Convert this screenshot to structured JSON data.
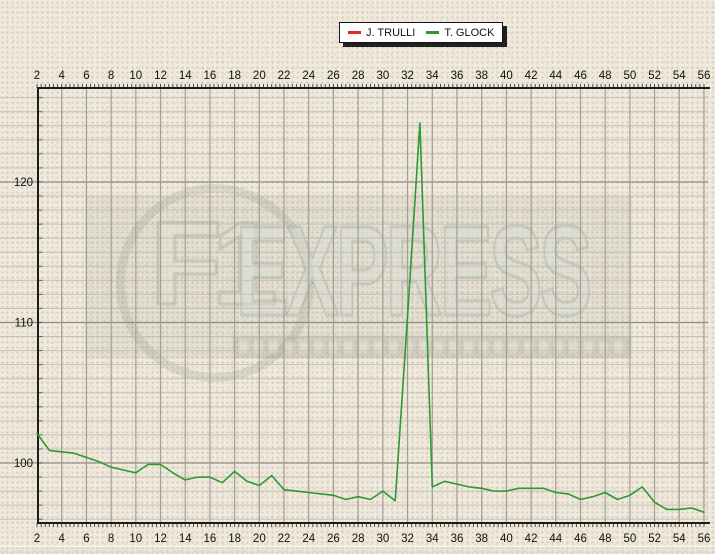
{
  "watermark": {
    "f1": "F1",
    "express": "EXPRESS"
  },
  "chart_data": {
    "type": "line",
    "title": "",
    "xlabel": "",
    "ylabel": "",
    "x": [
      2,
      3,
      4,
      5,
      6,
      7,
      8,
      9,
      10,
      11,
      12,
      13,
      14,
      15,
      16,
      17,
      18,
      19,
      20,
      21,
      22,
      23,
      24,
      25,
      26,
      27,
      28,
      29,
      30,
      31,
      32,
      33,
      34,
      35,
      36,
      37,
      38,
      39,
      40,
      41,
      42,
      43,
      44,
      45,
      46,
      47,
      48,
      49,
      50,
      51,
      52,
      53,
      54,
      55,
      56
    ],
    "series": [
      {
        "name": "J. TRULLI",
        "color": "#e02b20",
        "values": []
      },
      {
        "name": "T. GLOCK",
        "color": "#2e9933",
        "values": [
          102.1,
          100.9,
          100.8,
          100.7,
          100.4,
          100.1,
          99.7,
          99.5,
          99.3,
          99.9,
          99.9,
          99.3,
          98.8,
          99.0,
          99.0,
          98.6,
          99.4,
          98.7,
          98.4,
          99.1,
          98.1,
          98.0,
          97.9,
          97.8,
          97.7,
          97.4,
          97.6,
          97.4,
          98.0,
          97.3,
          110.5,
          124.2,
          98.3,
          98.7,
          98.5,
          98.3,
          98.2,
          98.0,
          98.0,
          98.2,
          98.2,
          98.2,
          97.9,
          97.8,
          97.4,
          97.6,
          97.9,
          97.4,
          97.7,
          98.3,
          97.2,
          96.7,
          96.7,
          96.8,
          96.5
        ]
      }
    ],
    "x_ticks": [
      2,
      4,
      6,
      8,
      10,
      12,
      14,
      16,
      18,
      20,
      22,
      24,
      26,
      28,
      30,
      32,
      34,
      36,
      38,
      40,
      42,
      44,
      46,
      48,
      50,
      52,
      54,
      56
    ],
    "y_ticks": [
      100,
      110,
      120
    ],
    "xlim": [
      2,
      56
    ],
    "ylim": [
      95.7,
      126.8
    ],
    "grid": "on",
    "legend_position": "top-center",
    "x_axis_labels": "top-and-bottom"
  }
}
